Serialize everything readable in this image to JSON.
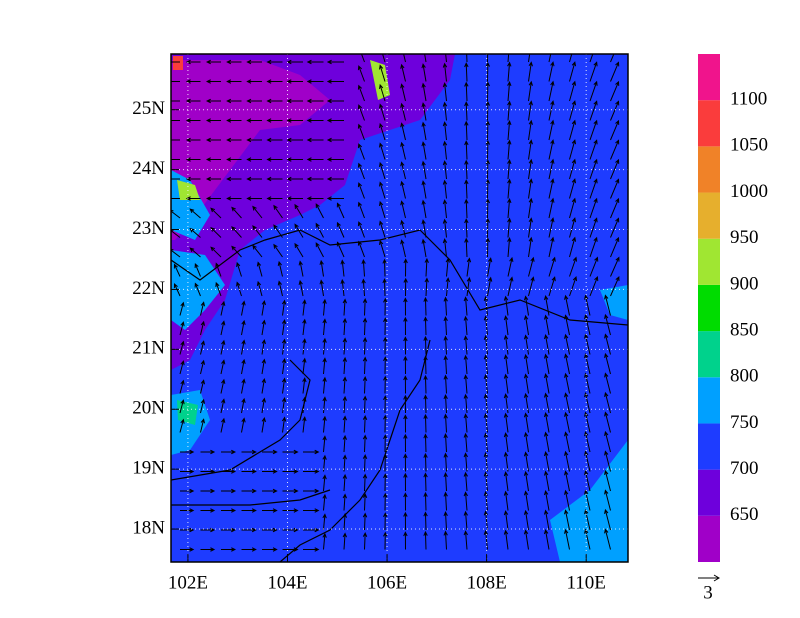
{
  "map": {
    "lon_range": [
      101.66,
      110.84
    ],
    "lat_range": [
      17.45,
      25.93
    ],
    "lon_ticks": [
      {
        "value": 102,
        "label": "102E"
      },
      {
        "value": 104,
        "label": "104E"
      },
      {
        "value": 106,
        "label": "106E"
      },
      {
        "value": 108,
        "label": "108E"
      },
      {
        "value": 110,
        "label": "110E"
      }
    ],
    "lat_ticks": [
      {
        "value": 18,
        "label": "18N"
      },
      {
        "value": 19,
        "label": "19N"
      },
      {
        "value": 20,
        "label": "20N"
      },
      {
        "value": 21,
        "label": "21N"
      },
      {
        "value": 22,
        "label": "22N"
      },
      {
        "value": 23,
        "label": "23N"
      },
      {
        "value": 24,
        "label": "24N"
      },
      {
        "value": 25,
        "label": "25N"
      }
    ],
    "grid": true
  },
  "colorbar": {
    "levels": [
      650,
      700,
      750,
      800,
      850,
      900,
      950,
      1000,
      1050,
      1100
    ],
    "colors": [
      "#a000c8",
      "#6e00dc",
      "#1e3cff",
      "#00a0ff",
      "#00d28c",
      "#00dc00",
      "#a0e632",
      "#e6af2d",
      "#f08228",
      "#fa3c3c",
      "#f0148c"
    ]
  },
  "vector_key": {
    "label": "3"
  }
}
